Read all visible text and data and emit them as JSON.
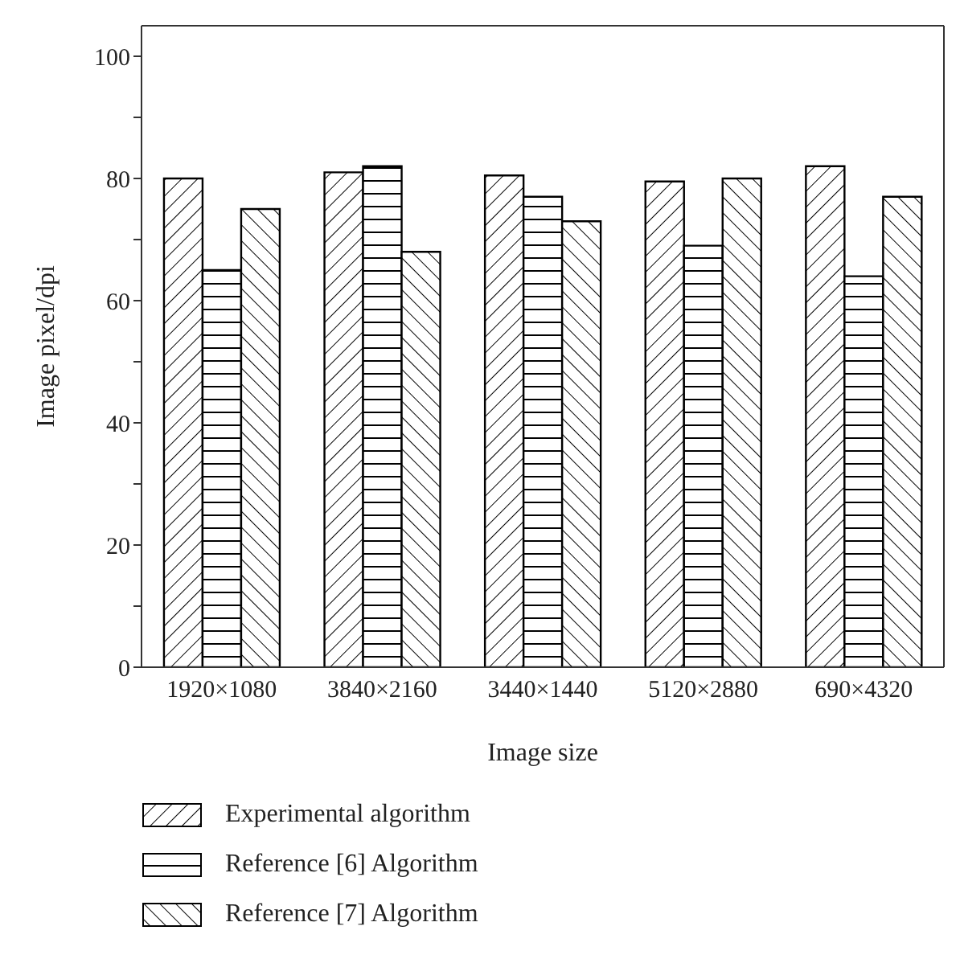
{
  "chart_data": {
    "type": "bar",
    "xlabel": "Image size",
    "ylabel": "Image pixel/dpi",
    "categories": [
      "1920×1080",
      "3840×2160",
      "3440×1440",
      "5120×2880",
      "690×4320"
    ],
    "series": [
      {
        "name": "Experimental algorithm",
        "color": "#000000",
        "values": [
          80,
          81,
          80.5,
          79.5,
          82
        ]
      },
      {
        "name": "Reference [6] Algorithm",
        "color": "#000000",
        "values": [
          65,
          82,
          77,
          69,
          64
        ]
      },
      {
        "name": "Reference [7] Algorithm",
        "color": "#000000",
        "values": [
          75,
          68,
          73,
          80,
          77
        ]
      }
    ],
    "ylim": [
      0,
      105
    ],
    "yticks": [
      0,
      {
        "value": 10,
        "label": null
      },
      20,
      {
        "value": 30,
        "label": null
      },
      40,
      {
        "value": 50,
        "label": null
      },
      60,
      {
        "value": 70,
        "label": null
      },
      80,
      {
        "value": 90,
        "label": null
      },
      100
    ],
    "legend": "bottom",
    "grid": false
  }
}
